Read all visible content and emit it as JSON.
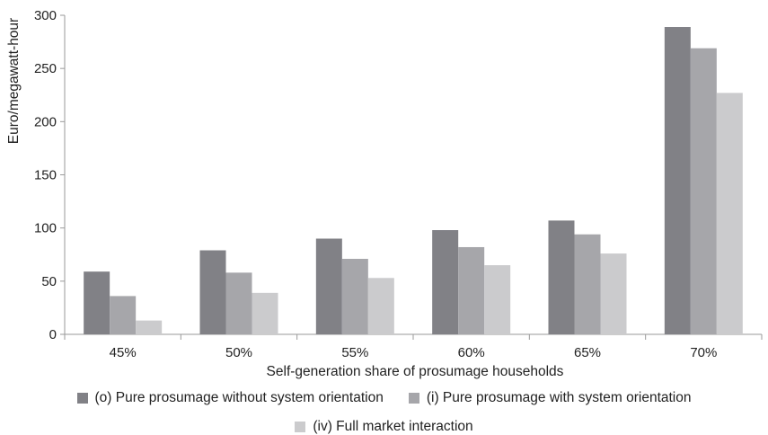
{
  "chart_data": {
    "type": "bar",
    "title": "",
    "xlabel": "Self-generation share of prosumage households",
    "ylabel": "Euro/megawatt-hour",
    "categories": [
      "45%",
      "50%",
      "55%",
      "60%",
      "65%",
      "70%"
    ],
    "ylim": [
      0,
      300
    ],
    "yticks": [
      0,
      50,
      100,
      150,
      200,
      250,
      300
    ],
    "grid": false,
    "legend_position": "bottom",
    "series": [
      {
        "name": "(o) Pure prosumage without system orientation",
        "color": "#818186",
        "values": [
          59,
          79,
          90,
          98,
          107,
          289
        ]
      },
      {
        "name": "(i) Pure prosumage with system orientation",
        "color": "#a6a6aa",
        "values": [
          36,
          58,
          71,
          82,
          94,
          269
        ]
      },
      {
        "name": "(iv) Full market interaction",
        "color": "#cbcbcd",
        "values": [
          13,
          39,
          53,
          65,
          76,
          227
        ]
      }
    ]
  }
}
